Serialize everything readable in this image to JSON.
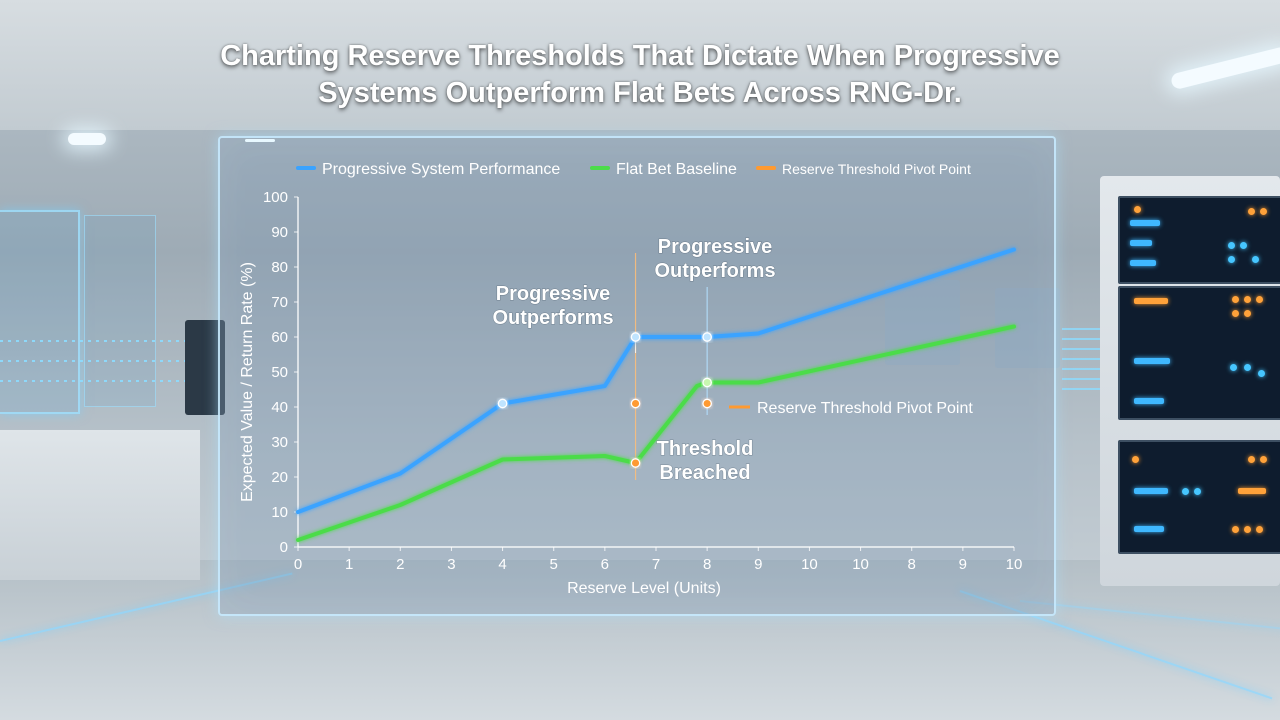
{
  "title_line1": "Charting Reserve Thresholds That Dictate When Progressive",
  "title_line2": "Systems Outperform Flat Bets Across RNG-Dr.",
  "chart_data": {
    "type": "line",
    "xlabel": "Reserve Level (Units)",
    "ylabel": "Expected Value / Return Rate (%)",
    "ylim": [
      0,
      100
    ],
    "y_ticks": [
      0,
      10,
      20,
      30,
      40,
      50,
      60,
      70,
      80,
      90,
      100
    ],
    "x_tick_labels": [
      "0",
      "1",
      "2",
      "3",
      "4",
      "5",
      "6",
      "7",
      "8",
      "9",
      "10",
      "10",
      "8",
      "9",
      "10"
    ],
    "grid": false,
    "legend_position": "top",
    "legend": [
      {
        "label": "Progressive System Performance",
        "color": "#3aa3ff"
      },
      {
        "label": "Flat Bet Baseline",
        "color": "#4cdc4a"
      },
      {
        "label": "Reserve Threshold Pivot Point",
        "color": "#ff9a30"
      }
    ],
    "series": [
      {
        "name": "Progressive System Performance",
        "color": "#3aa3ff",
        "x": [
          0,
          2,
          3,
          4,
          6,
          6.6,
          8,
          9,
          14
        ],
        "y": [
          10,
          21,
          31,
          41,
          46,
          60,
          60,
          61,
          85
        ]
      },
      {
        "name": "Flat Bet Baseline",
        "color": "#4cdc4a",
        "x": [
          0,
          2,
          4,
          6,
          6.6,
          7.8,
          8,
          9,
          14
        ],
        "y": [
          2,
          12,
          25,
          26,
          24,
          46,
          47,
          47,
          63
        ]
      },
      {
        "name": "Reserve Threshold Pivot Point",
        "color": "#ff9a30",
        "x": [
          0,
          14
        ],
        "y": [
          41,
          41
        ]
      }
    ],
    "pivot_label": "Reserve Threshold Pivot Point",
    "annotations": [
      {
        "text_lines": [
          "Progressive",
          "Outperforms"
        ],
        "x": 6.6,
        "y": 60
      },
      {
        "text_lines": [
          "Progressive",
          "Outperforms"
        ],
        "x": 8,
        "y": 60
      },
      {
        "text_lines": [
          "Threshold",
          "Breached"
        ],
        "x": 6.6,
        "y": 24
      }
    ],
    "markers": [
      {
        "x": 4,
        "y": 41,
        "color": "#bfe4ff"
      },
      {
        "x": 6.6,
        "y": 60,
        "color": "#bfe4ff"
      },
      {
        "x": 8,
        "y": 60,
        "color": "#bfe4ff"
      },
      {
        "x": 8,
        "y": 47,
        "color": "#c8f7b0"
      },
      {
        "x": 6.6,
        "y": 41,
        "color": "#ff9a30"
      },
      {
        "x": 8,
        "y": 41,
        "color": "#ff9a30"
      },
      {
        "x": 6.6,
        "y": 24,
        "color": "#ff9a30"
      }
    ]
  }
}
